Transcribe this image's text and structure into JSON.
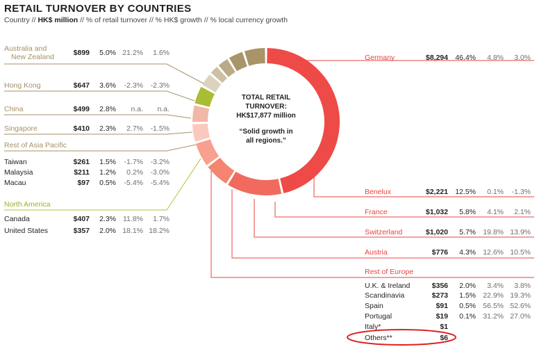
{
  "header": {
    "title": "RETAIL TURNOVER BY COUNTRIES",
    "subtitle_pre": "Country // ",
    "subtitle_bold": "HK$ million",
    "subtitle_post": " // % of retail turnover // % HK$ growth // % local currency growth"
  },
  "center": {
    "line1": "TOTAL RETAIL",
    "line2": "TURNOVER:",
    "line3": "HK$17,877 million",
    "quote1": "“Solid growth in",
    "quote2": "all regions.”"
  },
  "colors": {
    "europe": "#e8433f",
    "asia": "#a49166",
    "america": "#aec13a",
    "text": "#231f20",
    "muted": "#6d6e71",
    "highlight": "#e02020"
  },
  "left_groups": [
    {
      "key": "anz",
      "name": "Australia and New Zealand",
      "name1": "Australia and",
      "name2": "New Zealand",
      "value": "$899",
      "pct": "5.0%",
      "g1": "21.2%",
      "g2": "1.6%",
      "color": "#a49166"
    },
    {
      "key": "hk",
      "name": "Hong Kong",
      "value": "$647",
      "pct": "3.6%",
      "g1": "-2.3%",
      "g2": "-2.3%",
      "color": "#a49166"
    },
    {
      "key": "cn",
      "name": "China",
      "value": "$499",
      "pct": "2.8%",
      "g1": "n.a.",
      "g2": "n.a.",
      "color": "#a49166"
    },
    {
      "key": "sg",
      "name": "Singapore",
      "value": "$410",
      "pct": "2.3%",
      "g1": "2.7%",
      "g2": "-1.5%",
      "color": "#a49166"
    },
    {
      "key": "roap",
      "name": "Rest of Asia Pacific",
      "color": "#a49166"
    },
    {
      "key": "na",
      "name": "North America",
      "color": "#aec13a"
    }
  ],
  "left_rows": [
    {
      "key": "tw",
      "name": "Taiwan",
      "value": "$261",
      "pct": "1.5%",
      "g1": "-1.7%",
      "g2": "-3.2%"
    },
    {
      "key": "my",
      "name": "Malaysia",
      "value": "$211",
      "pct": "1.2%",
      "g1": "0.2%",
      "g2": "-3.0%"
    },
    {
      "key": "mo",
      "name": "Macau",
      "value": "$97",
      "pct": "0.5%",
      "g1": "-5.4%",
      "g2": "-5.4%"
    },
    {
      "key": "ca",
      "name": "Canada",
      "value": "$407",
      "pct": "2.3%",
      "g1": "11.8%",
      "g2": "1.7%"
    },
    {
      "key": "us",
      "name": "United States",
      "value": "$357",
      "pct": "2.0%",
      "g1": "18.1%",
      "g2": "18.2%"
    }
  ],
  "right_groups": [
    {
      "key": "de",
      "name": "Germany",
      "value": "$8,294",
      "pct": "46.4%",
      "g1": "4.8%",
      "g2": "3.0%"
    },
    {
      "key": "be",
      "name": "Benelux",
      "value": "$2,221",
      "pct": "12.5%",
      "g1": "0.1%",
      "g2": "-1.3%"
    },
    {
      "key": "fr",
      "name": "France",
      "value": "$1,032",
      "pct": "5.8%",
      "g1": "4.1%",
      "g2": "2.1%"
    },
    {
      "key": "ch",
      "name": "Switzerland",
      "value": "$1,020",
      "pct": "5.7%",
      "g1": "19.8%",
      "g2": "13.9%"
    },
    {
      "key": "at",
      "name": "Austria",
      "value": "$776",
      "pct": "4.3%",
      "g1": "12.6%",
      "g2": "10.5%"
    },
    {
      "key": "roe",
      "name": "Rest of Europe"
    }
  ],
  "right_rows": [
    {
      "key": "uk",
      "name": "U.K. & Ireland",
      "value": "$356",
      "pct": "2.0%",
      "g1": "3.4%",
      "g2": "3.8%"
    },
    {
      "key": "sc",
      "name": "Scandinavia",
      "value": "$273",
      "pct": "1.5%",
      "g1": "22.9%",
      "g2": "19.3%"
    },
    {
      "key": "es",
      "name": "Spain",
      "value": "$91",
      "pct": "0.5%",
      "g1": "56.5%",
      "g2": "52.6%"
    },
    {
      "key": "pt",
      "name": "Portugal",
      "value": "$19",
      "pct": "0.1%",
      "g1": "31.2%",
      "g2": "27.0%"
    },
    {
      "key": "it",
      "name": "Italy*",
      "value": "$1"
    },
    {
      "key": "ot",
      "name": "Others**",
      "value": "$6"
    }
  ],
  "chart_data": {
    "type": "pie",
    "title": "RETAIL TURNOVER BY COUNTRIES",
    "total_label": "HK$17,877 million",
    "slices": [
      {
        "name": "Germany",
        "value": 8294,
        "share": 46.4,
        "color": "#ee4a47"
      },
      {
        "name": "Benelux",
        "value": 2221,
        "share": 12.5,
        "color": "#f06a5e"
      },
      {
        "name": "France",
        "value": 1032,
        "share": 5.8,
        "color": "#f58471"
      },
      {
        "name": "Switzerland",
        "value": 1020,
        "share": 5.7,
        "color": "#f8a08f"
      },
      {
        "name": "Austria",
        "value": 776,
        "share": 4.3,
        "color": "#fbc8bc"
      },
      {
        "name": "Rest of Europe",
        "value": 745,
        "share": 4.1,
        "color": "#f2b7a8"
      },
      {
        "name": "North America",
        "value": 764,
        "share": 4.3,
        "color": "#a9bd35"
      },
      {
        "name": "Rest of Asia Pacific",
        "value": 569,
        "share": 3.2,
        "color": "#dcd3bf"
      },
      {
        "name": "Singapore",
        "value": 410,
        "share": 2.3,
        "color": "#cdbf9f"
      },
      {
        "name": "China",
        "value": 499,
        "share": 2.8,
        "color": "#bca985"
      },
      {
        "name": "Hong Kong",
        "value": 647,
        "share": 3.6,
        "color": "#a9956a"
      },
      {
        "name": "Australia and New Zealand",
        "value": 899,
        "share": 5.0,
        "color": "#a89467"
      }
    ]
  }
}
